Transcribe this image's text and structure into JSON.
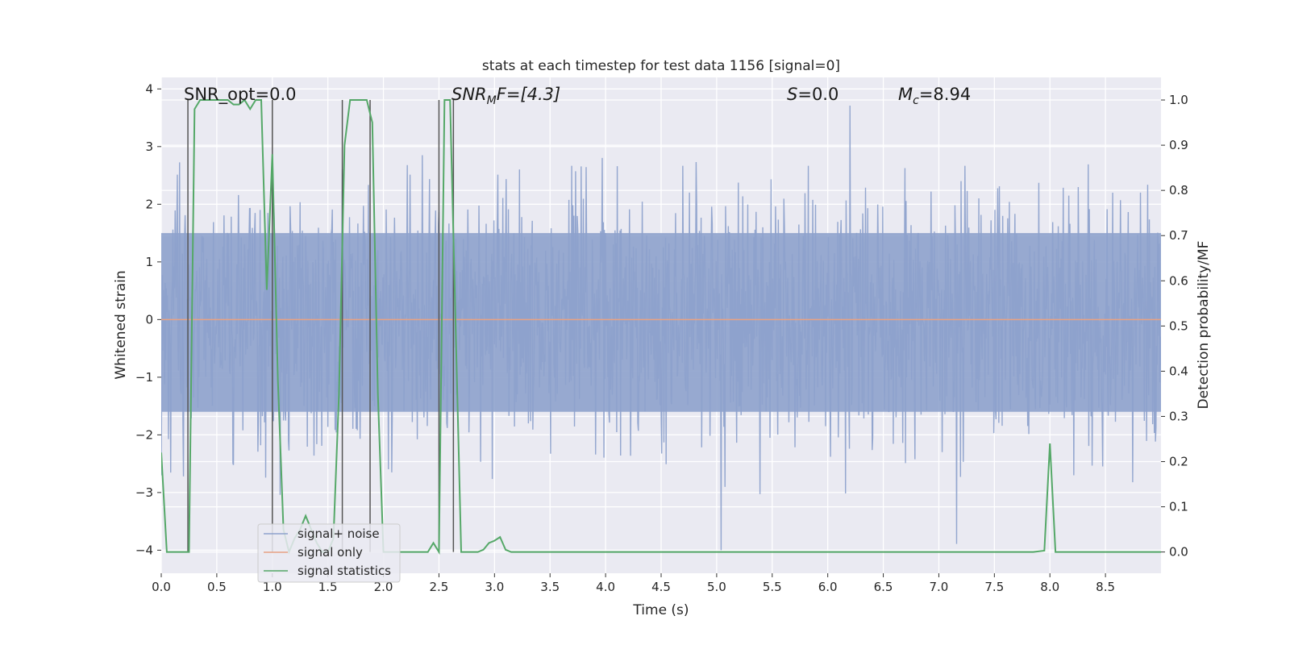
{
  "chart_data": {
    "type": "line",
    "title": "stats at each timestep for test data 1156 [signal=0]",
    "xlabel": "Time (s)",
    "ylabel": "Whitened strain",
    "y2label": "Detection probability/MF",
    "xlim": [
      0.0,
      9.0
    ],
    "ylim": [
      -4.4,
      4.2
    ],
    "y2lim": [
      -0.047,
      1.05
    ],
    "xticks": [
      "0.0",
      "0.5",
      "1.0",
      "1.5",
      "2.0",
      "2.5",
      "3.0",
      "3.5",
      "4.0",
      "4.5",
      "5.0",
      "5.5",
      "6.0",
      "6.5",
      "7.0",
      "7.5",
      "8.0",
      "8.5"
    ],
    "yticks": [
      "−4",
      "−3",
      "−2",
      "−1",
      "0",
      "1",
      "2",
      "3",
      "4"
    ],
    "y2ticks": [
      "0.0",
      "0.1",
      "0.2",
      "0.3",
      "0.4",
      "0.5",
      "0.6",
      "0.7",
      "0.8",
      "0.9",
      "1.0"
    ],
    "grid": true,
    "legend_position": "lower-left",
    "annotations": {
      "snr_opt": "SNR_opt=0.0",
      "snr_mf_base": "SNR",
      "snr_mf_sub": "M",
      "snr_mf_rest": "F=[4.3]",
      "s_label": "S",
      "s_rest": "=0.0",
      "mc_base": "M",
      "mc_sub": "c",
      "mc_rest": "=8.94"
    },
    "series": [
      {
        "name": "signal+ noise",
        "color": "#8ea2cc",
        "axis": "left",
        "description": "whitened strain noise, amplitude approx ±1.5 with spikes up to ±3.6",
        "range": [
          -4.0,
          3.8
        ]
      },
      {
        "name": "signal only",
        "color": "#e8a283",
        "axis": "left",
        "x": [
          0.0,
          9.0
        ],
        "y": [
          0.0,
          0.0
        ]
      },
      {
        "name": "signal statistics",
        "color": "#55a868",
        "axis": "right",
        "x": [
          0.0,
          0.05,
          0.1,
          0.15,
          0.2,
          0.25,
          0.3,
          0.35,
          0.4,
          0.45,
          0.5,
          0.55,
          0.6,
          0.65,
          0.7,
          0.75,
          0.8,
          0.85,
          0.9,
          0.95,
          1.0,
          1.05,
          1.1,
          1.15,
          1.2,
          1.25,
          1.3,
          1.35,
          1.4,
          1.45,
          1.5,
          1.55,
          1.6,
          1.65,
          1.7,
          1.75,
          1.8,
          1.85,
          1.9,
          1.95,
          2.0,
          2.05,
          2.1,
          2.15,
          2.2,
          2.25,
          2.3,
          2.35,
          2.4,
          2.45,
          2.5,
          2.55,
          2.6,
          2.65,
          2.7,
          2.75,
          2.8,
          2.85,
          2.9,
          2.95,
          3.0,
          3.05,
          3.1,
          3.15,
          3.2,
          3.5,
          4.0,
          4.5,
          5.0,
          5.5,
          6.0,
          6.5,
          7.0,
          7.5,
          7.85,
          7.95,
          8.0,
          8.05,
          8.1,
          8.5,
          9.0
        ],
        "y": [
          0.22,
          0.0,
          0.0,
          0.0,
          0.0,
          0.0,
          0.98,
          1.0,
          1.0,
          1.0,
          1.0,
          1.0,
          1.0,
          0.99,
          0.99,
          1.0,
          0.98,
          1.0,
          1.0,
          0.58,
          0.88,
          0.38,
          0.05,
          0.0,
          0.03,
          0.05,
          0.08,
          0.05,
          0.02,
          0.0,
          0.0,
          0.03,
          0.35,
          0.9,
          1.0,
          1.0,
          1.0,
          1.0,
          0.95,
          0.35,
          0.0,
          0.0,
          0.0,
          0.0,
          0.0,
          0.0,
          0.0,
          0.0,
          0.0,
          0.02,
          0.0,
          1.0,
          1.0,
          0.5,
          0.0,
          0.0,
          0.0,
          0.0,
          0.005,
          0.02,
          0.025,
          0.033,
          0.005,
          0.0,
          0.0,
          0.0,
          0.0,
          0.0,
          0.0,
          0.0,
          0.0,
          0.0,
          0.0,
          0.0,
          0.0,
          0.003,
          0.24,
          0.0,
          0.0,
          0.0,
          0.0
        ]
      }
    ],
    "vlines": [
      0.24,
      1.0,
      1.63,
      1.88,
      2.5,
      2.63
    ]
  }
}
